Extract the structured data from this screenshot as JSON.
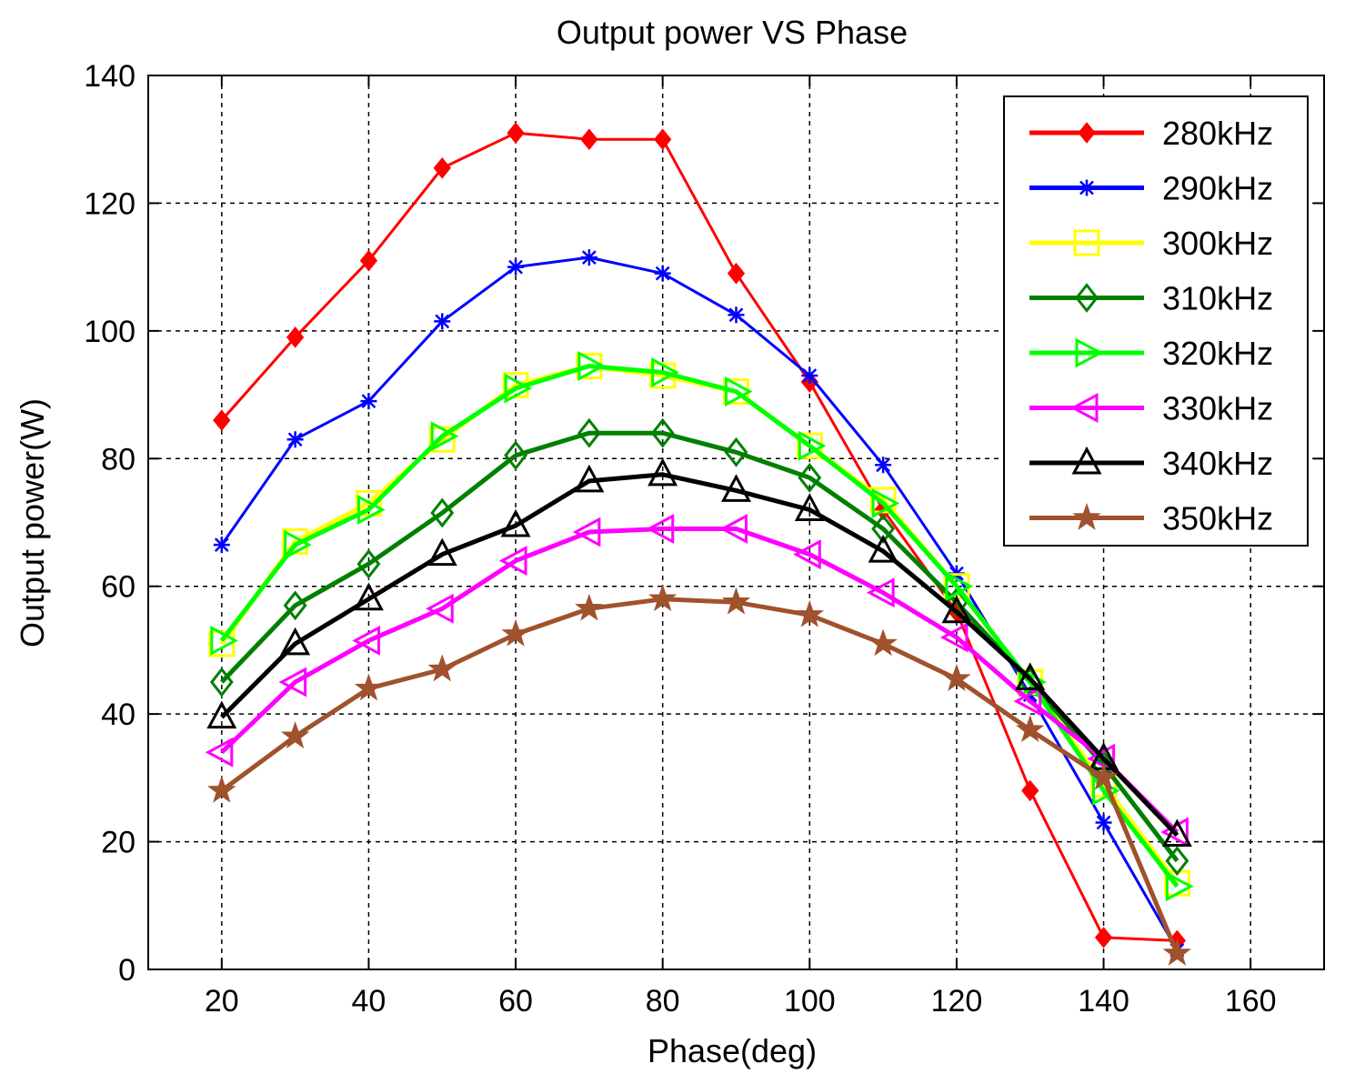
{
  "chart_data": {
    "type": "line",
    "title": "Output power VS Phase",
    "xlabel": "Phase(deg)",
    "ylabel": "Output power(W)",
    "xlim": [
      10,
      170
    ],
    "ylim": [
      0,
      140
    ],
    "xticks": [
      20,
      40,
      60,
      80,
      100,
      120,
      140,
      160
    ],
    "yticks": [
      0,
      20,
      40,
      60,
      80,
      100,
      120,
      140
    ],
    "grid": true,
    "legend_position": "top-right",
    "x": [
      20,
      30,
      40,
      50,
      60,
      70,
      80,
      90,
      100,
      110,
      120,
      130,
      140,
      150
    ],
    "series": [
      {
        "name": "280kHz",
        "color": "#ff0000",
        "marker": "filled-diamond",
        "values": [
          86,
          99,
          111,
          125.5,
          131,
          130,
          130,
          109,
          92,
          72,
          56,
          28,
          5,
          4.5
        ]
      },
      {
        "name": "290kHz",
        "color": "#0000ff",
        "marker": "star-x",
        "values": [
          66.5,
          83,
          89,
          101.5,
          110,
          111.5,
          109,
          102.5,
          93,
          79,
          62,
          43,
          23,
          3
        ]
      },
      {
        "name": "300kHz",
        "color": "#ffff00",
        "marker": "square",
        "values": [
          51,
          67,
          73,
          83,
          91.5,
          94.5,
          93,
          90.5,
          82,
          73.5,
          60,
          45,
          29,
          13.5
        ]
      },
      {
        "name": "310kHz",
        "color": "#008000",
        "marker": "diamond",
        "values": [
          45,
          57,
          63.5,
          71.5,
          80.5,
          84,
          84,
          81,
          77,
          69,
          57.5,
          45,
          32,
          17
        ]
      },
      {
        "name": "320kHz",
        "color": "#00ff00",
        "marker": "triangle-right",
        "values": [
          51.5,
          66.5,
          72,
          83.5,
          91,
          94.5,
          93.5,
          90.5,
          82,
          73,
          60,
          45,
          28,
          13
        ]
      },
      {
        "name": "330kHz",
        "color": "#ff00ff",
        "marker": "triangle-left",
        "values": [
          34,
          45,
          51.5,
          56.5,
          64,
          68.5,
          69,
          69,
          65,
          59,
          52,
          42,
          33,
          21.5
        ]
      },
      {
        "name": "340kHz",
        "color": "#000000",
        "marker": "triangle-up",
        "values": [
          39.5,
          51,
          58,
          65,
          69.5,
          76.5,
          77.5,
          75,
          72,
          65.5,
          56,
          45.5,
          33,
          21
        ]
      },
      {
        "name": "350kHz",
        "color": "#a0522d",
        "marker": "filled-star",
        "values": [
          28,
          36.5,
          44,
          47,
          52.5,
          56.5,
          58,
          57.5,
          55.5,
          51,
          45.5,
          37.5,
          30,
          2.5
        ]
      }
    ]
  }
}
